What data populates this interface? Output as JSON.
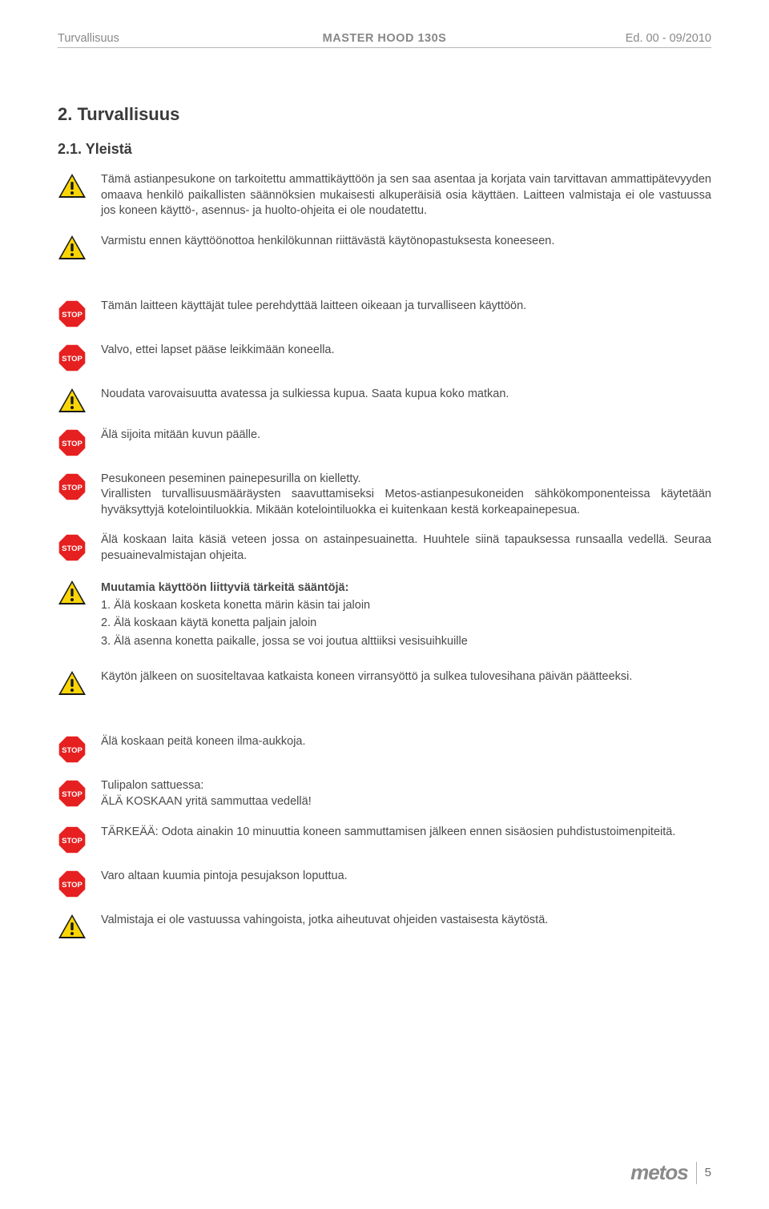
{
  "header": {
    "left": "Turvallisuus",
    "center": "MASTER HOOD 130S",
    "right": "Ed. 00 - 09/2010"
  },
  "sections": {
    "h2": "2.  Turvallisuus",
    "h3": "2.1.  Yleistä"
  },
  "items": [
    {
      "icon": "warn",
      "text": "Tämä astianpesukone on tarkoitettu ammattikäyttöön ja sen saa asentaa ja korjata vain tarvittavan ammattipätevyyden omaava henkilö paikallisten säännöksien mukaisesti alkuperäisiä osia käyttäen. Laitteen valmistaja ei ole vastuussa jos koneen käyttö-, asennus- ja huolto-ohjeita ei ole noudatettu."
    },
    {
      "icon": "warn",
      "text": "Varmistu ennen käyttöönottoa henkilökunnan riittävästä käytönopastuksesta koneeseen."
    },
    {
      "icon": "gap-lg"
    },
    {
      "icon": "stop",
      "text": "Tämän laitteen käyttäjät tulee perehdyttää laitteen oikeaan ja turvalliseen käyttöön."
    },
    {
      "icon": "stop",
      "text": "Valvo, ettei lapset pääse leikkimään koneella."
    },
    {
      "icon": "warn",
      "text": "Noudata varovaisuutta avatessa ja sulkiessa kupua. Saata kupua koko matkan."
    },
    {
      "icon": "stop",
      "text": "Älä sijoita mitään kuvun päälle."
    },
    {
      "icon": "stop",
      "text": "Pesukoneen peseminen painepesurilla on kielletty.\nVirallisten turvallisuusmääräysten saavuttamiseksi Metos-astianpesukoneiden sähkökomponenteissa käytetään hyväksyttyjä kotelointiluokkia. Mikään kotelointiluokka ei kuitenkaan kestä korkeapainepesua."
    },
    {
      "icon": "stop",
      "text": "Älä koskaan laita käsiä veteen jossa on astainpesuainetta. Huuhtele siinä tapauksessa runsaalla vedellä. Seuraa pesuainevalmistajan ohjeita."
    },
    {
      "icon": "warn",
      "rules": {
        "title": "Muutamia käyttöön liittyviä tärkeitä sääntöjä:",
        "r1": "1. Älä koskaan kosketa konetta märin käsin tai jaloin",
        "r2": "2. Älä koskaan käytä konetta paljain jaloin",
        "r3": "3. Älä asenna konetta paikalle, jossa se voi joutua alttiiksi vesisuihkuille"
      }
    },
    {
      "icon": "gap-sm"
    },
    {
      "icon": "warn",
      "text": "Käytön jälkeen on suositeltavaa katkaista koneen virransyöttö ja sulkea tulovesihana päivän päätteeksi."
    },
    {
      "icon": "gap-lg"
    },
    {
      "icon": "stop",
      "text": "Älä koskaan peitä koneen ilma-aukkoja."
    },
    {
      "icon": "stop",
      "text": "Tulipalon sattuessa:\nÄLÄ KOSKAAN yritä sammuttaa vedellä!"
    },
    {
      "icon": "stop",
      "text": "TÄRKEÄÄ: Odota ainakin 10 minuuttia koneen sammuttamisen jälkeen ennen sisäosien puhdistustoimenpiteitä."
    },
    {
      "icon": "stop",
      "text": "Varo altaan kuumia pintoja pesujakson loputtua."
    },
    {
      "icon": "warn",
      "text": "Valmistaja ei ole vastuussa vahingoista, jotka aiheutuvat ohjeiden vastaisesta käytöstä."
    }
  ],
  "footer": {
    "logo": "metos",
    "page": "5"
  },
  "icons": {
    "warn": {
      "fill": "#f9d506",
      "stroke": "#1a1a1a"
    },
    "stop": {
      "fill": "#e62020",
      "stroke": "#ffffff",
      "label": "STOP"
    }
  }
}
